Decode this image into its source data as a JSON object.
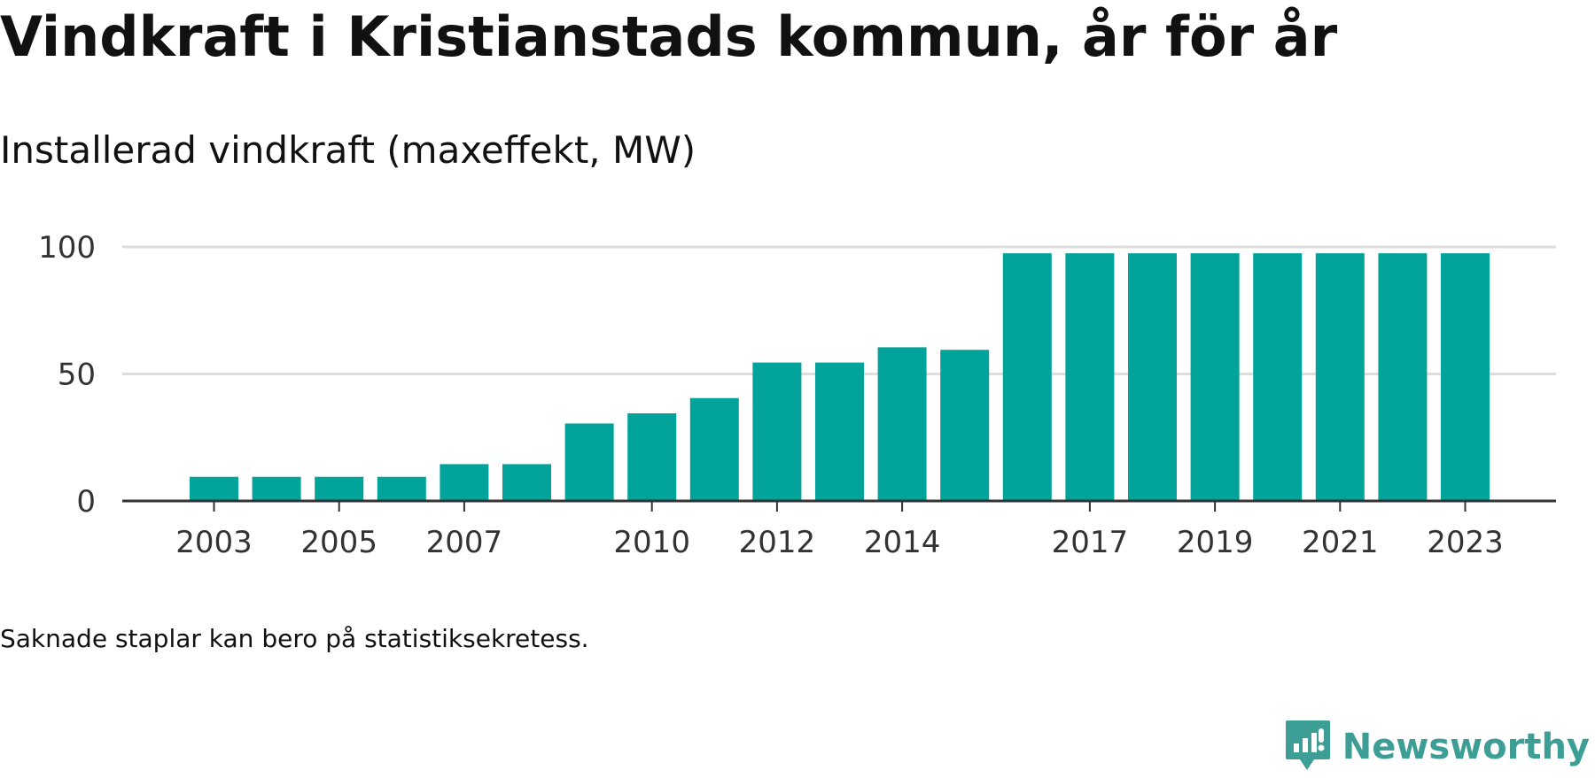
{
  "header": {
    "title": "Vindkraft i Kristianstads kommun, år för år",
    "subtitle": "Installerad vindkraft (maxeffekt, MW)"
  },
  "footer": {
    "note": "Saknade staplar kan bero på statistiksekretess.",
    "brand": "Newsworthy",
    "brand_icon": "newsworthy-logo-icon"
  },
  "colors": {
    "bar": "#02a39a",
    "grid": "#dddddd",
    "axis": "#333333",
    "brand": "#3d9e96"
  },
  "chart_data": {
    "type": "bar",
    "title": "Vindkraft i Kristianstads kommun, år för år",
    "subtitle": "Installerad vindkraft (maxeffekt, MW)",
    "xlabel": "",
    "ylabel": "",
    "categories": [
      "2003",
      "2004",
      "2005",
      "2006",
      "2007",
      "2008",
      "2009",
      "2010",
      "2011",
      "2012",
      "2013",
      "2014",
      "2015",
      "2016",
      "2017",
      "2018",
      "2019",
      "2020",
      "2021",
      "2022",
      "2023"
    ],
    "values": [
      9.5,
      9.5,
      9.5,
      9.5,
      14.5,
      14.5,
      30.5,
      34.5,
      40.5,
      54.5,
      54.5,
      60.5,
      59.5,
      97.5,
      97.5,
      97.5,
      97.5,
      97.5,
      97.5,
      97.5,
      97.5
    ],
    "ylim": [
      0,
      100
    ],
    "yticks": [
      0,
      50,
      100
    ],
    "xtick_labels": [
      "2003",
      "2005",
      "2007",
      "2010",
      "2012",
      "2014",
      "2017",
      "2019",
      "2021",
      "2023"
    ],
    "grid": true,
    "legend": false
  }
}
